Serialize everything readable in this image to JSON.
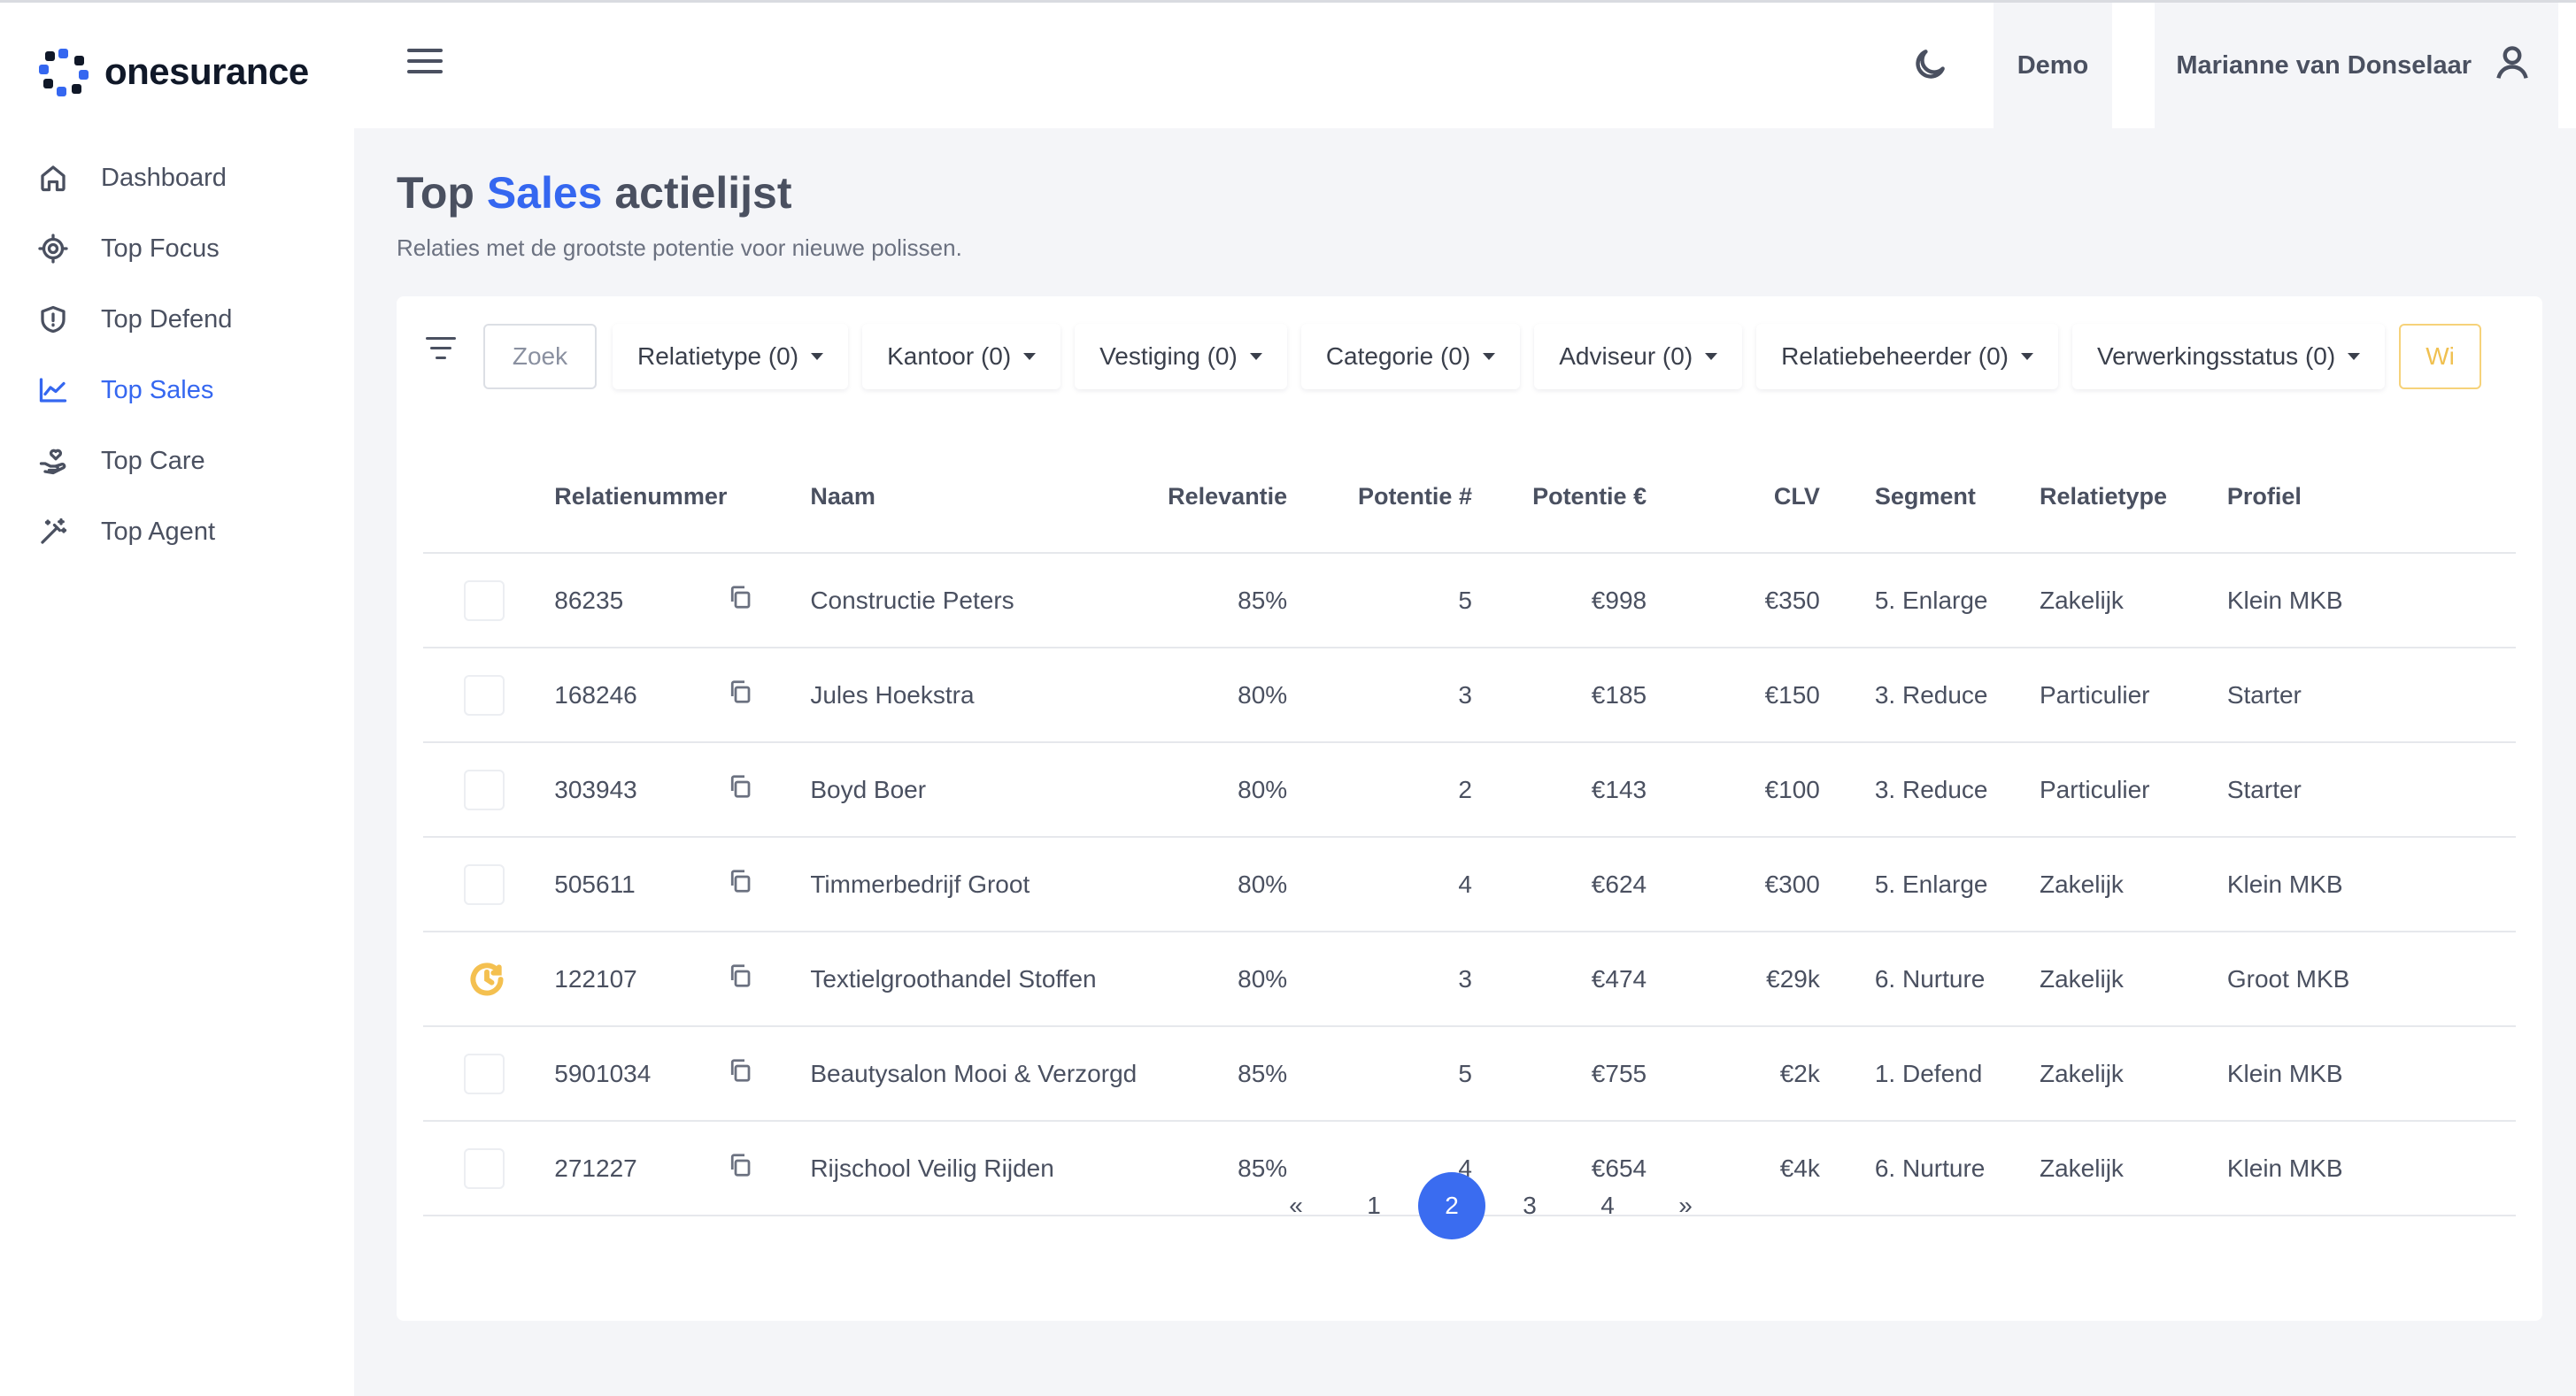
{
  "brand": {
    "name": "onesurance"
  },
  "sidebar": {
    "items": [
      {
        "label": "Dashboard",
        "icon": "home-icon",
        "active": false
      },
      {
        "label": "Top Focus",
        "icon": "target-icon",
        "active": false
      },
      {
        "label": "Top Defend",
        "icon": "shield-icon",
        "active": false
      },
      {
        "label": "Top Sales",
        "icon": "trend-icon",
        "active": true
      },
      {
        "label": "Top Care",
        "icon": "care-hand-icon",
        "active": false
      },
      {
        "label": "Top Agent",
        "icon": "magic-wand-icon",
        "active": false
      }
    ]
  },
  "header": {
    "demo_label": "Demo",
    "user_name": "Marianne van Donselaar"
  },
  "page": {
    "title_prefix": "Top ",
    "title_accent": "Sales",
    "title_suffix": " actielijst",
    "subtitle": "Relaties met de grootste potentie voor nieuwe polissen."
  },
  "filters": {
    "search_placeholder": "Zoek",
    "items": [
      "Relatietype (0)",
      "Kantoor (0)",
      "Vestiging (0)",
      "Categorie (0)",
      "Adviseur (0)",
      "Relatiebeheerder (0)",
      "Verwerkingsstatus (0)"
    ],
    "cut_off_label": "Wi"
  },
  "table": {
    "columns": [
      "Relatienummer",
      "Naam",
      "Relevantie",
      "Potentie #",
      "Potentie €",
      "CLV",
      "Segment",
      "Relatietype",
      "Profiel"
    ],
    "rows": [
      {
        "status": "checkbox",
        "nummer": "86235",
        "naam": "Constructie Peters",
        "relevantie": "85%",
        "potentie_n": "5",
        "potentie_eur": "€998",
        "clv": "€350",
        "segment": "5. Enlarge",
        "relatietype": "Zakelijk",
        "profiel": "Klein MKB"
      },
      {
        "status": "checkbox",
        "nummer": "168246",
        "naam": "Jules Hoekstra",
        "relevantie": "80%",
        "potentie_n": "3",
        "potentie_eur": "€185",
        "clv": "€150",
        "segment": "3. Reduce",
        "relatietype": "Particulier",
        "profiel": "Starter"
      },
      {
        "status": "checkbox",
        "nummer": "303943",
        "naam": "Boyd Boer",
        "relevantie": "80%",
        "potentie_n": "2",
        "potentie_eur": "€143",
        "clv": "€100",
        "segment": "3. Reduce",
        "relatietype": "Particulier",
        "profiel": "Starter"
      },
      {
        "status": "checkbox",
        "nummer": "505611",
        "naam": "Timmerbedrijf Groot",
        "relevantie": "80%",
        "potentie_n": "4",
        "potentie_eur": "€624",
        "clv": "€300",
        "segment": "5. Enlarge",
        "relatietype": "Zakelijk",
        "profiel": "Klein MKB"
      },
      {
        "status": "in-progress",
        "nummer": "122107",
        "naam": "Textielgroothandel Stoffen",
        "relevantie": "80%",
        "potentie_n": "3",
        "potentie_eur": "€474",
        "clv": "€29k",
        "segment": "6. Nurture",
        "relatietype": "Zakelijk",
        "profiel": "Groot MKB"
      },
      {
        "status": "checkbox",
        "nummer": "5901034",
        "naam": "Beautysalon Mooi & Verzorgd",
        "relevantie": "85%",
        "potentie_n": "5",
        "potentie_eur": "€755",
        "clv": "€2k",
        "segment": "1. Defend",
        "relatietype": "Zakelijk",
        "profiel": "Klein MKB"
      },
      {
        "status": "checkbox",
        "nummer": "271227",
        "naam": "Rijschool Veilig Rijden",
        "relevantie": "85%",
        "potentie_n": "4",
        "potentie_eur": "€654",
        "clv": "€4k",
        "segment": "6. Nurture",
        "relatietype": "Zakelijk",
        "profiel": "Klein MKB"
      }
    ]
  },
  "pagination": {
    "prev": "«",
    "pages": [
      "1",
      "2",
      "3",
      "4"
    ],
    "current": "2",
    "next": "»"
  },
  "colors": {
    "accent": "#3567f0",
    "pending": "#f4c050",
    "page_bg": "#f4f5f8"
  }
}
